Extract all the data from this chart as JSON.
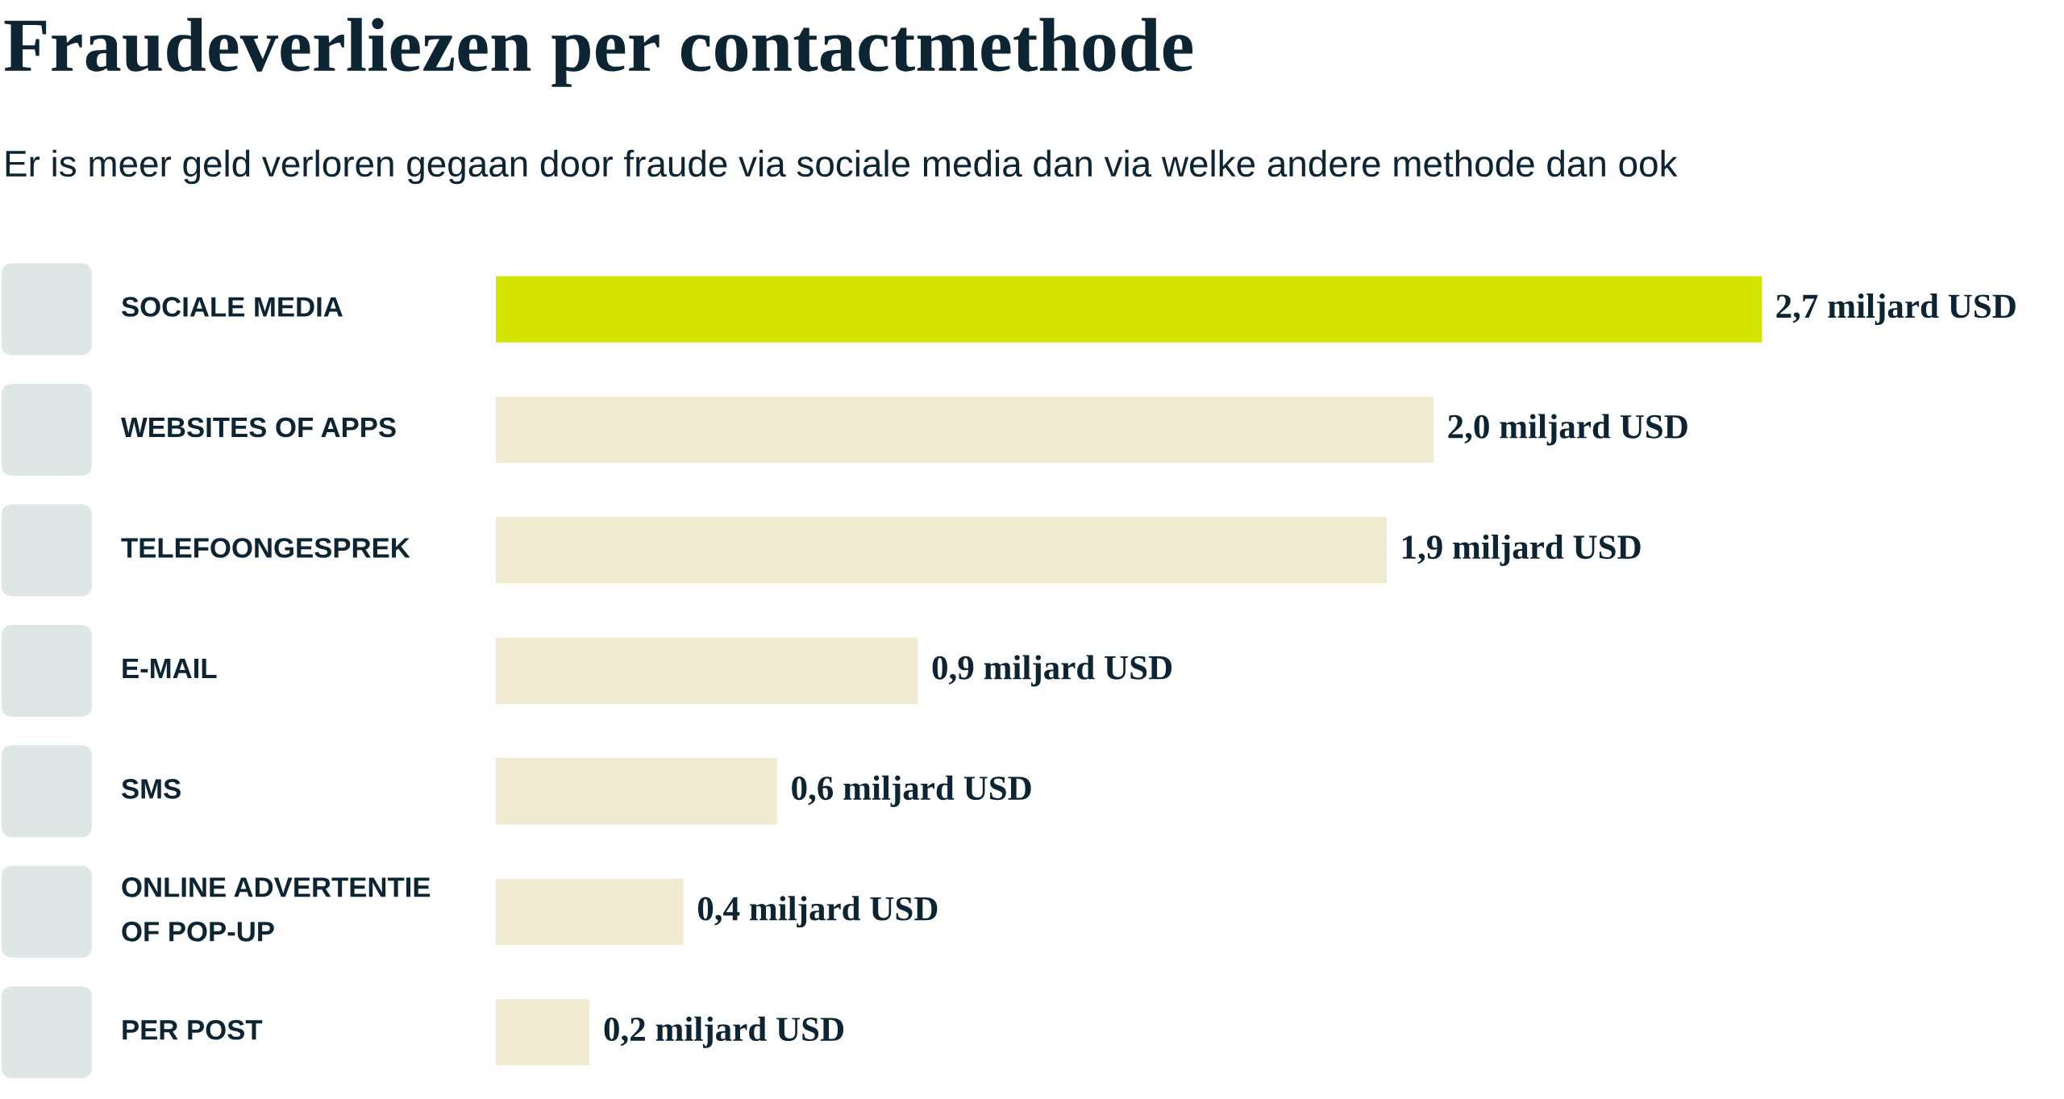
{
  "chart_data": {
    "type": "bar",
    "orientation": "horizontal",
    "title": "Fraudeverliezen per contactmethode",
    "subtitle": "Er is meer geld verloren gegaan door fraude via sociale media dan via welke andere methode dan ook",
    "categories": [
      "SOCIALE MEDIA",
      "WEBSITES OF APPS",
      "TELEFOONGESPREK",
      "E-MAIL",
      "SMS",
      "ONLINE ADVERTENTIE\nOF POP-UP",
      "PER POST"
    ],
    "values": [
      2.7,
      2.0,
      1.9,
      0.9,
      0.6,
      0.4,
      0.2
    ],
    "colors": [
      "#d4e300",
      "#f0ead0",
      "#f0ead0",
      "#f0ead0",
      "#f0ead0",
      "#f0ead0",
      "#f0ead0"
    ],
    "value_labels": [
      "2,7 miljard USD",
      "2,0 miljard USD",
      "1,9 miljard USD",
      "0,9 miljard USD",
      "0,6 miljard USD",
      "0,4 miljard USD",
      "0,2 miljard USD"
    ],
    "legend": false
  }
}
